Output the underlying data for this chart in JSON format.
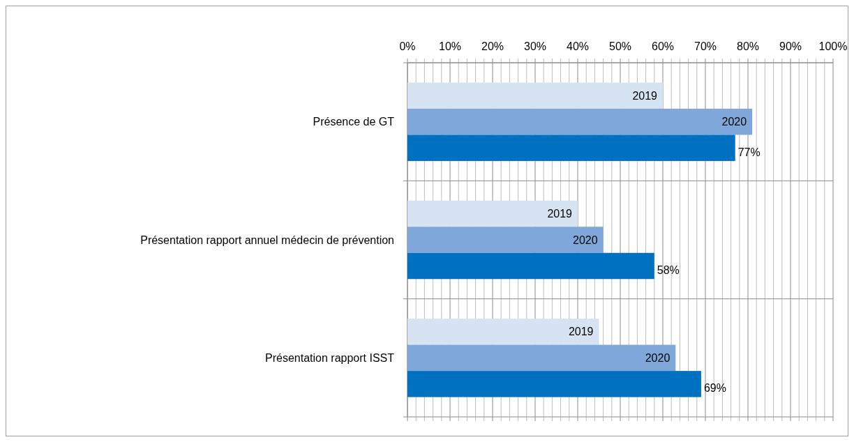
{
  "chart_data": {
    "type": "bar",
    "orientation": "horizontal",
    "categories": [
      "Présence de GT",
      "Présentation rapport annuel médecin de prévention",
      "Présentation rapport ISST"
    ],
    "series": [
      {
        "name": "2019",
        "color": "#d6e3f2",
        "values": [
          60,
          40,
          45
        ]
      },
      {
        "name": "2020",
        "color": "#7fa7d9",
        "values": [
          81,
          46,
          63
        ]
      },
      {
        "color": "#0070c0",
        "values": [
          77,
          58,
          69
        ],
        "value_labels": [
          "77%",
          "58%",
          "69%"
        ]
      }
    ],
    "xlim": [
      0,
      100
    ],
    "xticks": [
      {
        "value": 0,
        "label": "0%"
      },
      {
        "value": 2,
        "label": null
      },
      {
        "value": 4,
        "label": null
      },
      {
        "value": 6,
        "label": null
      },
      {
        "value": 8,
        "label": null
      },
      {
        "value": 10,
        "label": "10%"
      },
      {
        "value": 12,
        "label": null
      },
      {
        "value": 14,
        "label": null
      },
      {
        "value": 16,
        "label": null
      },
      {
        "value": 18,
        "label": null
      },
      {
        "value": 20,
        "label": "20%"
      },
      {
        "value": 22,
        "label": null
      },
      {
        "value": 24,
        "label": null
      },
      {
        "value": 26,
        "label": null
      },
      {
        "value": 28,
        "label": null
      },
      {
        "value": 30,
        "label": "30%"
      },
      {
        "value": 32,
        "label": null
      },
      {
        "value": 34,
        "label": null
      },
      {
        "value": 36,
        "label": null
      },
      {
        "value": 38,
        "label": null
      },
      {
        "value": 40,
        "label": "40%"
      },
      {
        "value": 42,
        "label": null
      },
      {
        "value": 44,
        "label": null
      },
      {
        "value": 46,
        "label": null
      },
      {
        "value": 48,
        "label": null
      },
      {
        "value": 50,
        "label": "50%"
      },
      {
        "value": 52,
        "label": null
      },
      {
        "value": 54,
        "label": null
      },
      {
        "value": 56,
        "label": null
      },
      {
        "value": 58,
        "label": null
      },
      {
        "value": 60,
        "label": "60%"
      },
      {
        "value": 62,
        "label": null
      },
      {
        "value": 64,
        "label": null
      },
      {
        "value": 66,
        "label": null
      },
      {
        "value": 68,
        "label": null
      },
      {
        "value": 70,
        "label": "70%"
      },
      {
        "value": 72,
        "label": null
      },
      {
        "value": 74,
        "label": null
      },
      {
        "value": 76,
        "label": null
      },
      {
        "value": 78,
        "label": null
      },
      {
        "value": 80,
        "label": "80%"
      },
      {
        "value": 82,
        "label": null
      },
      {
        "value": 84,
        "label": null
      },
      {
        "value": 86,
        "label": null
      },
      {
        "value": 88,
        "label": null
      },
      {
        "value": 90,
        "label": "90%"
      },
      {
        "value": 92,
        "label": null
      },
      {
        "value": 94,
        "label": null
      },
      {
        "value": 96,
        "label": null
      },
      {
        "value": 98,
        "label": null
      },
      {
        "value": 100,
        "label": "100%"
      }
    ],
    "grid": true
  }
}
